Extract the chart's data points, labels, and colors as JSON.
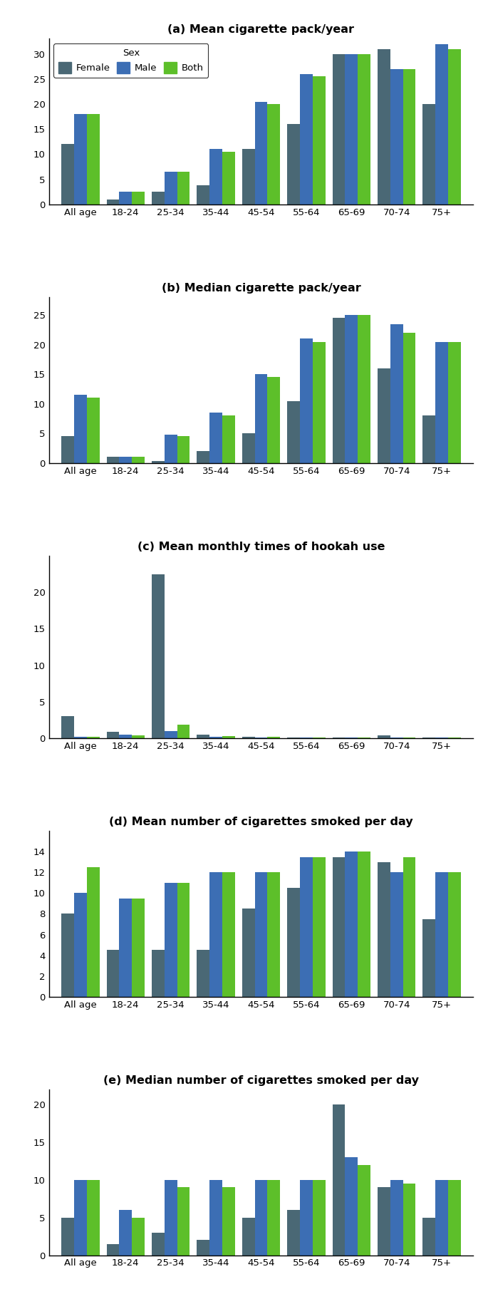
{
  "categories": [
    "All age",
    "18-24",
    "25-34",
    "35-44",
    "45-54",
    "55-64",
    "65-69",
    "70-74",
    "75+"
  ],
  "female_color": "#4a6875",
  "male_color": "#3c6eb4",
  "both_color": "#5dbf2a",
  "charts": [
    {
      "title": "(a) Mean cigarette pack/year",
      "female": [
        12,
        1,
        2.5,
        3.8,
        11,
        16,
        30,
        31,
        20
      ],
      "male": [
        18,
        2.5,
        6.5,
        11,
        20.5,
        26,
        30,
        27,
        32
      ],
      "both": [
        18,
        2.5,
        6.5,
        10.5,
        20,
        25.5,
        30,
        27,
        31
      ],
      "ylim": [
        0,
        33
      ],
      "yticks": [
        0,
        5,
        10,
        15,
        20,
        25,
        30
      ]
    },
    {
      "title": "(b) Median cigarette pack/year",
      "female": [
        4.5,
        1,
        0.3,
        2,
        5,
        10.5,
        24.5,
        16,
        8
      ],
      "male": [
        11.5,
        1,
        4.8,
        8.5,
        15,
        21,
        25,
        23.5,
        20.5
      ],
      "both": [
        11,
        1,
        4.5,
        8,
        14.5,
        20.5,
        25,
        22,
        20.5
      ],
      "ylim": [
        0,
        28
      ],
      "yticks": [
        0,
        5,
        10,
        15,
        20,
        25
      ]
    },
    {
      "title": "(c) Mean monthly times of hookah use",
      "female": [
        3,
        0.9,
        22.5,
        0.5,
        0.15,
        0.1,
        0.1,
        0.4,
        0.1
      ],
      "male": [
        0.15,
        0.5,
        1,
        0.15,
        0.1,
        0.05,
        0.05,
        0.05,
        0.05
      ],
      "both": [
        0.2,
        0.35,
        1.8,
        0.25,
        0.2,
        0.05,
        0.05,
        0.05,
        0.05
      ],
      "ylim": [
        0,
        25
      ],
      "yticks": [
        0,
        5,
        10,
        15,
        20
      ]
    },
    {
      "title": "(d) Mean number of cigarettes smoked per day",
      "female": [
        8,
        4.5,
        4.5,
        4.5,
        8.5,
        10.5,
        13.5,
        13,
        7.5
      ],
      "male": [
        10,
        9.5,
        11,
        12,
        12,
        13.5,
        14,
        12,
        12
      ],
      "both": [
        12.5,
        9.5,
        11,
        12,
        12,
        13.5,
        14,
        13.5,
        12
      ],
      "ylim": [
        0,
        16
      ],
      "yticks": [
        0,
        2,
        4,
        6,
        8,
        10,
        12,
        14
      ]
    },
    {
      "title": "(e) Median number of cigarettes smoked per day",
      "female": [
        5,
        1.5,
        3,
        2,
        5,
        6,
        20,
        9,
        5
      ],
      "male": [
        10,
        6,
        10,
        10,
        10,
        10,
        13,
        10,
        10
      ],
      "both": [
        10,
        5,
        9,
        9,
        10,
        10,
        12,
        9.5,
        10
      ],
      "ylim": [
        0,
        22
      ],
      "yticks": [
        0,
        5,
        10,
        15,
        20
      ]
    }
  ],
  "height_ratios": [
    1.0,
    1.0,
    1.1,
    1.0,
    1.0
  ],
  "legend_title": "Sex",
  "legend_labels": [
    "Female",
    "Male",
    "Both"
  ]
}
